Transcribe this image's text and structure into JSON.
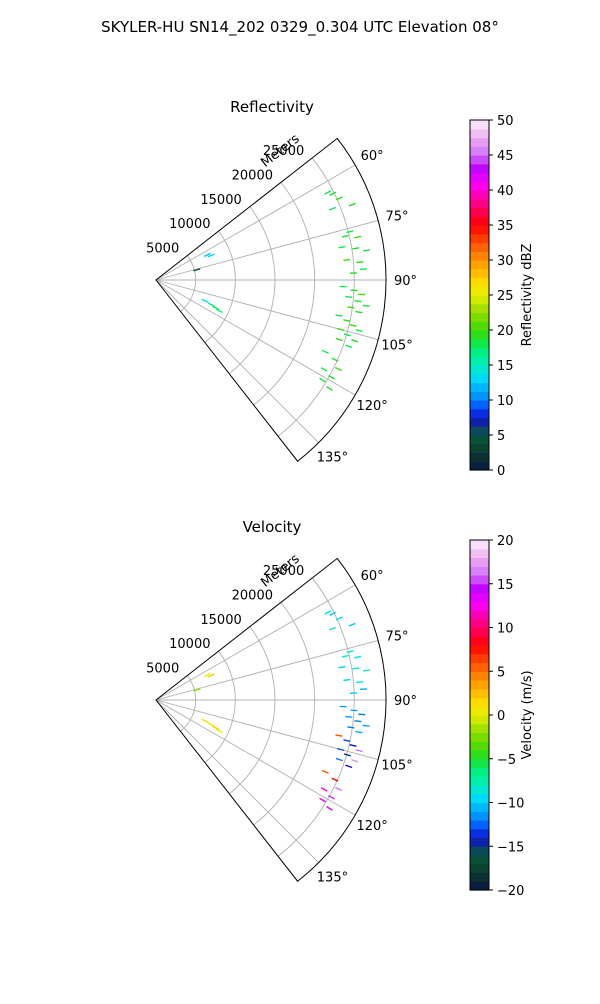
{
  "figure": {
    "title": "SKYLER-HU  SN14_202  0329_0.304 UTC Elevation 08°"
  },
  "chart_data": [
    {
      "type": "polar-sector",
      "title": "Reflectivity",
      "radial_axis_label": "Meters",
      "radial_ticks": [
        5000,
        10000,
        15000,
        20000,
        25000
      ],
      "radial_tick_labels": [
        "5000",
        "10000",
        "15000",
        "20000",
        "25000"
      ],
      "rlim": [
        0,
        29000
      ],
      "theta_range_deg": [
        52,
        142
      ],
      "theta_ticks_deg": [
        60,
        75,
        90,
        105,
        120,
        135
      ],
      "theta_tick_labels": [
        "60°",
        "75°",
        "90°",
        "105°",
        "120°",
        "135°"
      ],
      "grid": true,
      "colorbar": {
        "label": "Reflectivity dBZ",
        "range": [
          0,
          50
        ],
        "ticks": [
          0,
          5,
          10,
          15,
          20,
          25,
          30,
          35,
          40,
          45,
          50
        ],
        "tick_labels": [
          "0",
          "5",
          "10",
          "15",
          "20",
          "25",
          "30",
          "35",
          "40",
          "45",
          "50"
        ]
      },
      "data": [
        {
          "az": 63,
          "r": 24300,
          "v": 18
        },
        {
          "az": 64,
          "r": 24800,
          "v": 19
        },
        {
          "az": 66,
          "r": 25300,
          "v": 20
        },
        {
          "az": 68,
          "r": 24000,
          "v": 18
        },
        {
          "az": 69,
          "r": 26500,
          "v": 19
        },
        {
          "az": 76,
          "r": 25200,
          "v": 18
        },
        {
          "az": 77,
          "r": 24500,
          "v": 19
        },
        {
          "az": 78,
          "r": 26000,
          "v": 20
        },
        {
          "az": 80,
          "r": 23800,
          "v": 18
        },
        {
          "az": 81,
          "r": 25500,
          "v": 19
        },
        {
          "az": 82,
          "r": 26800,
          "v": 18
        },
        {
          "az": 84,
          "r": 24200,
          "v": 20
        },
        {
          "az": 85,
          "r": 25800,
          "v": 19
        },
        {
          "az": 87,
          "r": 26200,
          "v": 18
        },
        {
          "az": 88,
          "r": 24900,
          "v": 19
        },
        {
          "az": 92,
          "r": 23600,
          "v": 18
        },
        {
          "az": 93,
          "r": 25000,
          "v": 19
        },
        {
          "az": 94,
          "r": 26000,
          "v": 20
        },
        {
          "az": 95,
          "r": 24400,
          "v": 18
        },
        {
          "az": 96,
          "r": 25600,
          "v": 19
        },
        {
          "az": 97,
          "r": 26700,
          "v": 18
        },
        {
          "az": 98,
          "r": 24800,
          "v": 20
        },
        {
          "az": 99,
          "r": 25900,
          "v": 19
        },
        {
          "az": 101,
          "r": 23500,
          "v": 18
        },
        {
          "az": 102,
          "r": 24600,
          "v": 19
        },
        {
          "az": 103,
          "r": 25500,
          "v": 20
        },
        {
          "az": 104,
          "r": 26400,
          "v": 18
        },
        {
          "az": 105,
          "r": 24100,
          "v": 19
        },
        {
          "az": 106,
          "r": 25100,
          "v": 18
        },
        {
          "az": 107,
          "r": 26200,
          "v": 19
        },
        {
          "az": 108,
          "r": 24300,
          "v": 20
        },
        {
          "az": 109,
          "r": 25700,
          "v": 18
        },
        {
          "az": 113,
          "r": 23200,
          "v": 18
        },
        {
          "az": 114,
          "r": 24700,
          "v": 19
        },
        {
          "az": 116,
          "r": 25600,
          "v": 20
        },
        {
          "az": 118,
          "r": 24000,
          "v": 18
        },
        {
          "az": 119,
          "r": 25300,
          "v": 19
        },
        {
          "az": 121,
          "r": 24500,
          "v": 18
        },
        {
          "az": 122,
          "r": 25800,
          "v": 19
        },
        {
          "az": 64,
          "r": 7200,
          "v": 12
        },
        {
          "az": 66,
          "r": 7600,
          "v": 13
        },
        {
          "az": 76,
          "r": 5300,
          "v": 5
        },
        {
          "az": 113,
          "r": 6700,
          "v": 13
        },
        {
          "az": 114,
          "r": 7600,
          "v": 17
        },
        {
          "az": 115,
          "r": 8300,
          "v": 18
        },
        {
          "az": 116,
          "r": 8900,
          "v": 17
        }
      ]
    },
    {
      "type": "polar-sector",
      "title": "Velocity",
      "radial_axis_label": "Meters",
      "radial_ticks": [
        5000,
        10000,
        15000,
        20000,
        25000
      ],
      "radial_tick_labels": [
        "5000",
        "10000",
        "15000",
        "20000",
        "25000"
      ],
      "rlim": [
        0,
        29000
      ],
      "theta_range_deg": [
        52,
        142
      ],
      "theta_ticks_deg": [
        60,
        75,
        90,
        105,
        120,
        135
      ],
      "theta_tick_labels": [
        "60°",
        "75°",
        "90°",
        "105°",
        "120°",
        "135°"
      ],
      "grid": true,
      "colorbar": {
        "label": "Velocity (m/s)",
        "range": [
          -20,
          20
        ],
        "ticks": [
          -20,
          -15,
          -10,
          -5,
          0,
          5,
          10,
          15,
          20
        ],
        "tick_labels": [
          "−20",
          "−15",
          "−10",
          "−5",
          "0",
          "5",
          "10",
          "15",
          "20"
        ]
      },
      "data": [
        {
          "az": 63,
          "r": 24300,
          "v": -9
        },
        {
          "az": 64,
          "r": 24800,
          "v": -10
        },
        {
          "az": 66,
          "r": 25300,
          "v": -9
        },
        {
          "az": 68,
          "r": 24000,
          "v": -8
        },
        {
          "az": 69,
          "r": 26500,
          "v": -10
        },
        {
          "az": 76,
          "r": 25200,
          "v": -9
        },
        {
          "az": 77,
          "r": 24500,
          "v": -7
        },
        {
          "az": 78,
          "r": 26000,
          "v": -9
        },
        {
          "az": 80,
          "r": 23800,
          "v": -10
        },
        {
          "az": 81,
          "r": 25500,
          "v": -9
        },
        {
          "az": 82,
          "r": 26800,
          "v": -8
        },
        {
          "az": 84,
          "r": 24200,
          "v": -10
        },
        {
          "az": 85,
          "r": 25800,
          "v": -9
        },
        {
          "az": 87,
          "r": 26200,
          "v": -11
        },
        {
          "az": 88,
          "r": 24900,
          "v": -10
        },
        {
          "az": 92,
          "r": 23600,
          "v": -11
        },
        {
          "az": 93,
          "r": 25000,
          "v": -11
        },
        {
          "az": 94,
          "r": 26000,
          "v": -12
        },
        {
          "az": 95,
          "r": 24400,
          "v": -11
        },
        {
          "az": 96,
          "r": 25600,
          "v": -12
        },
        {
          "az": 97,
          "r": 26700,
          "v": -11
        },
        {
          "az": 98,
          "r": 24800,
          "v": -12
        },
        {
          "az": 99,
          "r": 25900,
          "v": -11
        },
        {
          "az": 101,
          "r": 23500,
          "v": 6
        },
        {
          "az": 102,
          "r": 24600,
          "v": -13
        },
        {
          "az": 103,
          "r": 25500,
          "v": -14
        },
        {
          "az": 104,
          "r": 26400,
          "v": 16
        },
        {
          "az": 105,
          "r": 24100,
          "v": -13
        },
        {
          "az": 106,
          "r": 25100,
          "v": -15
        },
        {
          "az": 107,
          "r": 26200,
          "v": 17
        },
        {
          "az": 108,
          "r": 24300,
          "v": -12
        },
        {
          "az": 109,
          "r": 25700,
          "v": -14
        },
        {
          "az": 113,
          "r": 23200,
          "v": 6
        },
        {
          "az": 114,
          "r": 24700,
          "v": 8
        },
        {
          "az": 116,
          "r": 25600,
          "v": 16
        },
        {
          "az": 118,
          "r": 24000,
          "v": 12
        },
        {
          "az": 119,
          "r": 25300,
          "v": 15
        },
        {
          "az": 121,
          "r": 24500,
          "v": 13
        },
        {
          "az": 122,
          "r": 25800,
          "v": 14
        },
        {
          "az": 64,
          "r": 7200,
          "v": 1
        },
        {
          "az": 66,
          "r": 7600,
          "v": 2
        },
        {
          "az": 76,
          "r": 5300,
          "v": -2
        },
        {
          "az": 113,
          "r": 6700,
          "v": 1
        },
        {
          "az": 114,
          "r": 7600,
          "v": 0
        },
        {
          "az": 115,
          "r": 8300,
          "v": 2
        },
        {
          "az": 116,
          "r": 8900,
          "v": 1
        }
      ]
    }
  ]
}
